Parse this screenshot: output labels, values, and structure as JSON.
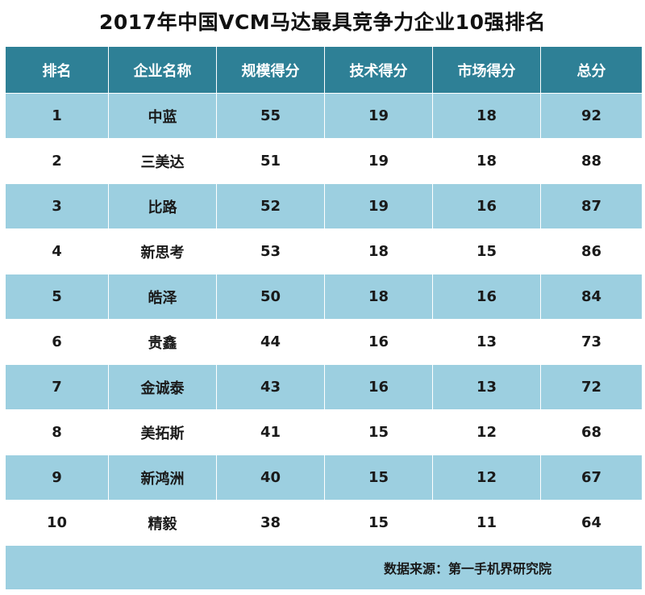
{
  "chart_data": {
    "type": "table",
    "title": "2017年中国VCM马达最具竞争力企业10强排名",
    "columns": [
      "排名",
      "企业名称",
      "规模得分",
      "技术得分",
      "市场得分",
      "总分"
    ],
    "rows": [
      [
        "1",
        "中蓝",
        "55",
        "19",
        "18",
        "92"
      ],
      [
        "2",
        "三美达",
        "51",
        "19",
        "18",
        "88"
      ],
      [
        "3",
        "比路",
        "52",
        "19",
        "16",
        "87"
      ],
      [
        "4",
        "新思考",
        "53",
        "18",
        "15",
        "86"
      ],
      [
        "5",
        "皓泽",
        "50",
        "18",
        "16",
        "84"
      ],
      [
        "6",
        "贵鑫",
        "44",
        "16",
        "13",
        "73"
      ],
      [
        "7",
        "金诚泰",
        "43",
        "16",
        "13",
        "72"
      ],
      [
        "8",
        "美拓斯",
        "41",
        "15",
        "12",
        "68"
      ],
      [
        "9",
        "新鸿洲",
        "40",
        "15",
        "12",
        "67"
      ],
      [
        "10",
        "精毅",
        "38",
        "15",
        "11",
        "64"
      ]
    ],
    "source": "数据来源：第一手机界研究院"
  },
  "colors": {
    "header_bg": "#2e8096",
    "header_text": "#ffffff",
    "stripe_bg": "#9ccfe0",
    "plain_bg": "#ffffff",
    "body_text": "#1a1a1a"
  }
}
